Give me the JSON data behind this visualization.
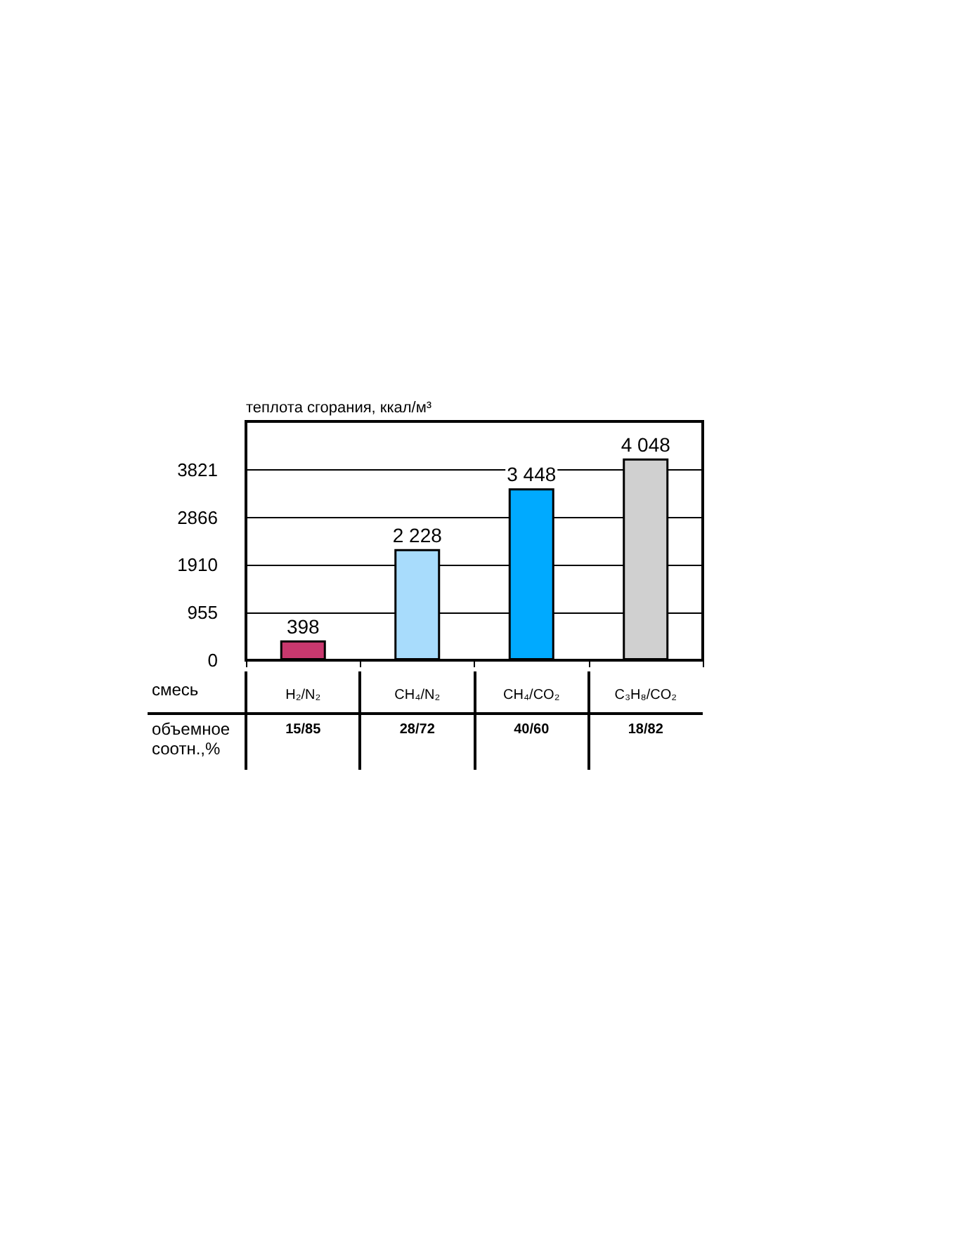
{
  "chart_data": {
    "type": "bar",
    "ylabel": "теплота сгорания, ккал/м³",
    "xlabel": "смесь",
    "categories": [
      "H₂/N₂",
      "CH₄/N₂",
      "CH₄/CO₂",
      "C₃H₈/CO₂"
    ],
    "values": [
      398,
      2228,
      3448,
      4048
    ],
    "colors": [
      "#c8386e",
      "#a8dcfc",
      "#00aaff",
      "#d0d0d0"
    ],
    "value_labels": [
      "398",
      "2 228",
      "3 448",
      "4 048"
    ],
    "ylim": [
      0,
      4790
    ],
    "yticks": [
      0,
      955,
      1910,
      2866,
      3821
    ],
    "grid": "y",
    "annotations": [
      "объемное соотн.,%",
      "15/85",
      "28/72",
      "40/60",
      "18/82"
    ]
  }
}
